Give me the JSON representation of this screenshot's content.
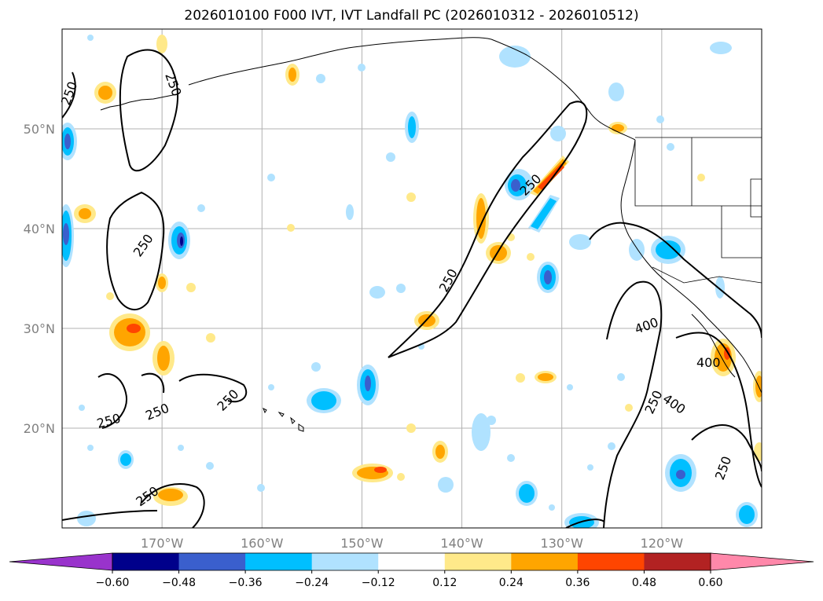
{
  "title": "2026010100 F000 IVT, IVT Landfall PC (2026010312 - 2026010512)",
  "map": {
    "extent": {
      "lon_min": -180,
      "lon_max": -110,
      "lat_min": 10,
      "lat_max": 60
    },
    "lat_labels": [
      "50°N",
      "40°N",
      "30°N",
      "20°N"
    ],
    "lat_values": [
      50,
      40,
      30,
      20
    ],
    "lon_labels": [
      "170°W",
      "160°W",
      "150°W",
      "140°W",
      "130°W",
      "120°W"
    ],
    "lon_values": [
      -170,
      -160,
      -150,
      -140,
      -130,
      -120
    ],
    "contour_labels": [
      "250",
      "250",
      "250",
      "250",
      "250",
      "250",
      "250",
      "250",
      "250",
      "250",
      "400",
      "400",
      "400",
      "250"
    ]
  },
  "colorbar": {
    "tick_labels": [
      "−0.60",
      "−0.48",
      "−0.36",
      "−0.24",
      "−0.12",
      "0.12",
      "0.24",
      "0.36",
      "0.48",
      "0.60"
    ],
    "colors": [
      "#9933cc",
      "#00008b",
      "#3a5fcd",
      "#00bfff",
      "#b0e2ff",
      "#ffffff",
      "#ffe98a",
      "#ffa500",
      "#ff4500",
      "#b22222",
      "#ff88aa"
    ]
  }
}
